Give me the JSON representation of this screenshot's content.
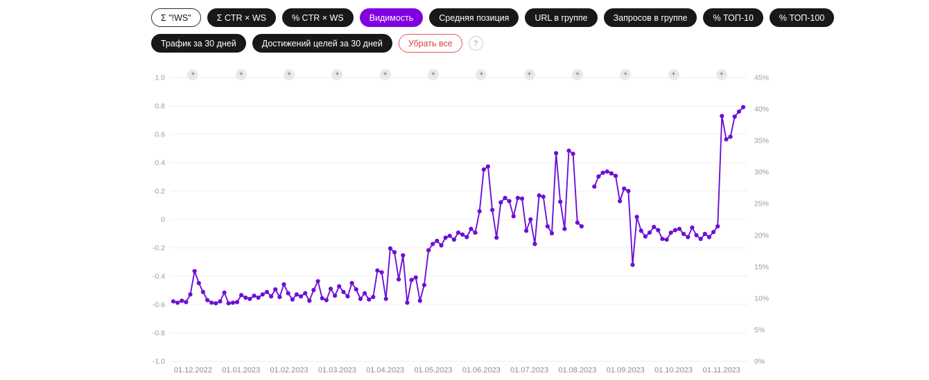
{
  "colors": {
    "accent": "#8100e0",
    "line": "#6d0fd6",
    "grid": "#ececec",
    "pill_dark": "#181818",
    "danger": "#e03e3e"
  },
  "filters": {
    "row1": [
      {
        "label": "Σ \"!WS\""
      },
      {
        "label": "Σ CTR × WS"
      },
      {
        "label": "% CTR × WS"
      },
      {
        "label": "Видимость"
      },
      {
        "label": "Средняя позиция"
      },
      {
        "label": "URL в группе"
      },
      {
        "label": "Запросов в группе"
      },
      {
        "label": "% ТОП-10"
      },
      {
        "label": "% ТОП-100"
      }
    ],
    "row2": [
      {
        "label": "Трафик за 30 дней"
      },
      {
        "label": "Достижений целей за 30 дней"
      },
      {
        "label": "Убрать все"
      }
    ],
    "help_label": "?"
  },
  "chart_data": {
    "type": "line",
    "title": "",
    "legend": "none",
    "grid": "horizontal",
    "plus_button_label": "+",
    "x_tick_labels": [
      "01.12.2022",
      "01.01.2023",
      "01.02.2023",
      "01.03.2023",
      "01.04.2023",
      "01.05.2023",
      "01.06.2023",
      "01.07.2023",
      "01.08.2023",
      "01.09.2023",
      "01.10.2023",
      "01.11.2023"
    ],
    "left_axis": {
      "range": [
        -1.0,
        1.0
      ],
      "ticks": [
        "1.0",
        "0.8",
        "0.6",
        "0.4",
        "0.2",
        "0",
        "-0.2",
        "-0.4",
        "-0.6",
        "-0.8",
        "-1.0"
      ]
    },
    "right_axis": {
      "range_percent": [
        0,
        45
      ],
      "ticks": [
        "45%",
        "40%",
        "35%",
        "30%",
        "25%",
        "20%",
        "15%",
        "10%",
        "5%",
        "0%"
      ]
    },
    "series": [
      {
        "name": "Видимость",
        "unit": "%",
        "color": "#6d0fd6",
        "values": [
          9.5,
          9.3,
          9.6,
          9.4,
          10.6,
          14.3,
          12.4,
          11.0,
          9.7,
          9.3,
          9.2,
          9.5,
          10.9,
          9.2,
          9.3,
          9.4,
          10.5,
          10.1,
          9.9,
          10.4,
          10.1,
          10.6,
          11.0,
          10.3,
          11.4,
          10.2,
          12.2,
          10.8,
          9.8,
          10.6,
          10.3,
          10.8,
          9.6,
          11.3,
          12.7,
          10.0,
          9.7,
          11.5,
          10.4,
          11.9,
          11.0,
          10.3,
          12.4,
          11.4,
          9.9,
          10.8,
          9.8,
          10.2,
          14.4,
          14.1,
          9.9,
          17.9,
          17.3,
          13.0,
          16.8,
          9.3,
          12.9,
          13.3,
          9.6,
          12.1,
          17.6,
          18.6,
          19.1,
          18.4,
          19.6,
          19.9,
          19.3,
          20.4,
          20.1,
          19.7,
          21.0,
          20.4,
          23.8,
          30.4,
          30.9,
          24.0,
          19.6,
          25.2,
          25.9,
          25.4,
          23.0,
          25.9,
          25.8,
          20.7,
          22.5,
          18.6,
          26.3,
          26.1,
          21.4,
          20.3,
          33.0,
          25.3,
          21.0,
          33.4,
          32.9,
          22.0,
          21.4,
          null,
          null,
          27.7,
          29.3,
          29.9,
          30.1,
          29.8,
          29.4,
          25.4,
          27.4,
          27.0,
          15.3,
          22.9,
          20.7,
          19.8,
          20.4,
          21.3,
          20.8,
          19.4,
          19.3,
          20.4,
          20.8,
          21.0,
          20.2,
          19.7,
          21.2,
          20.0,
          19.4,
          20.2,
          19.7,
          20.5,
          21.4,
          38.9,
          35.2,
          35.6,
          38.8,
          39.6,
          40.3
        ]
      }
    ]
  }
}
